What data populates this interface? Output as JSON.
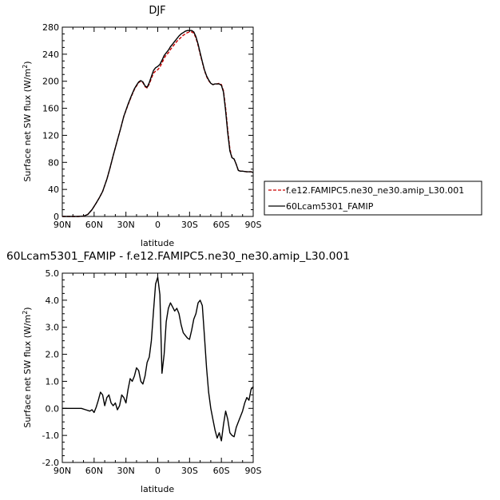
{
  "chart_data": [
    {
      "type": "line",
      "title": "DJF",
      "xlabel": "latitude",
      "ylabel": "Surface net SW flux (W/m",
      "ylabel_sup": "2",
      "ylabel_close": ")",
      "x_ticks": [
        -90,
        -60,
        -30,
        0,
        30,
        60,
        90
      ],
      "x_tick_labels": [
        "90N",
        "60N",
        "30N",
        "0",
        "30S",
        "60S",
        "90S"
      ],
      "xlim": [
        -90,
        90
      ],
      "ylim": [
        0,
        280
      ],
      "y_ticks": [
        0,
        40,
        80,
        120,
        160,
        200,
        240,
        280
      ],
      "y_tick_labels": [
        "0",
        "40",
        "80",
        "120",
        "160",
        "200",
        "240",
        "280"
      ],
      "legend_position": "right",
      "series": [
        {
          "name": "f.e12.FAMIPC5.ne30_ne30.amip_L30.001",
          "color": "#cc0000",
          "dash": "dashed",
          "x": [
            -90,
            -85,
            -80,
            -75,
            -70,
            -66,
            -62,
            -58,
            -55,
            -52,
            -48,
            -45,
            -42,
            -38,
            -35,
            -32,
            -28,
            -25,
            -22,
            -20,
            -18,
            -16,
            -14,
            -12,
            -10,
            -8,
            -6,
            -4,
            -2,
            0,
            2,
            4,
            6,
            8,
            10,
            12,
            14,
            16,
            18,
            20,
            22,
            24,
            26,
            28,
            30,
            32,
            34,
            36,
            38,
            40,
            42,
            44,
            46,
            48,
            50,
            52,
            54,
            56,
            58,
            60,
            62,
            64,
            66,
            68,
            70,
            72,
            74,
            76,
            78,
            80,
            84,
            88,
            90
          ],
          "y": [
            0,
            0,
            0,
            0,
            0.5,
            3,
            10,
            20,
            28,
            37,
            55,
            72,
            90,
            113,
            130,
            148,
            165,
            177,
            188,
            193,
            198,
            200,
            198,
            192,
            190,
            196,
            204,
            212,
            215,
            217,
            221,
            227,
            234,
            239,
            242,
            247,
            251,
            255,
            259,
            262,
            265,
            268,
            270,
            272,
            273,
            273,
            271,
            264,
            253,
            240,
            228,
            216,
            207,
            201,
            197,
            195,
            196,
            196,
            197,
            195,
            186,
            160,
            128,
            100,
            87,
            85,
            77,
            68,
            67,
            67,
            66,
            66,
            65
          ]
        },
        {
          "name": "60Lcam5301_FAMIP",
          "color": "#000000",
          "dash": "solid",
          "x": [
            -90,
            -85,
            -80,
            -75,
            -70,
            -66,
            -62,
            -58,
            -55,
            -52,
            -48,
            -45,
            -42,
            -38,
            -35,
            -32,
            -28,
            -25,
            -22,
            -20,
            -18,
            -16,
            -14,
            -12,
            -10,
            -8,
            -6,
            -4,
            -2,
            0,
            2,
            4,
            6,
            8,
            10,
            12,
            14,
            16,
            18,
            20,
            22,
            24,
            26,
            28,
            30,
            32,
            34,
            36,
            38,
            40,
            42,
            44,
            46,
            48,
            50,
            52,
            54,
            56,
            58,
            60,
            62,
            64,
            66,
            68,
            70,
            72,
            74,
            76,
            78,
            80,
            84,
            88,
            90
          ],
          "y": [
            0,
            0,
            0,
            0,
            0.5,
            3,
            10,
            20,
            28,
            37,
            55,
            72,
            90,
            113,
            130,
            148,
            166,
            178,
            189,
            194,
            199,
            201,
            199,
            193,
            191,
            198,
            207,
            216,
            220,
            222,
            225,
            231,
            238,
            242,
            246,
            251,
            255,
            259,
            263,
            267,
            270,
            272,
            274,
            275,
            275,
            275,
            273,
            266,
            255,
            242,
            229,
            217,
            208,
            202,
            197,
            195,
            196,
            196,
            196,
            194,
            184,
            156,
            124,
            97,
            87,
            85,
            77,
            68,
            67,
            67,
            66,
            66,
            65
          ]
        }
      ]
    },
    {
      "type": "line",
      "title": "60Lcam5301_FAMIP  -  f.e12.FAMIPC5.ne30_ne30.amip_L30.001",
      "xlabel": "latitude",
      "ylabel": "Surface net SW flux (W/m",
      "ylabel_sup": "2",
      "ylabel_close": ")",
      "x_ticks": [
        -90,
        -60,
        -30,
        0,
        30,
        60,
        90
      ],
      "x_tick_labels": [
        "90N",
        "60N",
        "30N",
        "0",
        "30S",
        "60S",
        "90S"
      ],
      "xlim": [
        -90,
        90
      ],
      "ylim": [
        -2,
        5
      ],
      "y_ticks": [
        -2,
        -1,
        0,
        1,
        2,
        3,
        4,
        5
      ],
      "y_tick_labels": [
        "-2.0",
        "-1.0",
        "0.0",
        "1.0",
        "2.0",
        "3.0",
        "4.0",
        "5.0"
      ],
      "series": [
        {
          "color": "#000000",
          "dash": "solid",
          "x": [
            -90,
            -80,
            -72,
            -68,
            -64,
            -62,
            -60,
            -58,
            -56,
            -54,
            -52,
            -50,
            -48,
            -46,
            -44,
            -42,
            -40,
            -38,
            -36,
            -34,
            -32,
            -30,
            -28,
            -26,
            -24,
            -22,
            -20,
            -18,
            -16,
            -14,
            -12,
            -10,
            -8,
            -6,
            -4,
            -2,
            0,
            2,
            4,
            6,
            8,
            10,
            12,
            14,
            16,
            18,
            20,
            22,
            24,
            26,
            28,
            30,
            32,
            34,
            36,
            38,
            40,
            42,
            44,
            46,
            48,
            50,
            52,
            54,
            56,
            58,
            60,
            62,
            64,
            66,
            68,
            70,
            72,
            74,
            76,
            78,
            80,
            82,
            84,
            86,
            88,
            90
          ],
          "y": [
            0,
            0,
            0,
            -0.05,
            -0.1,
            -0.05,
            -0.15,
            0.05,
            0.3,
            0.6,
            0.5,
            0.1,
            0.4,
            0.5,
            0.2,
            0.1,
            0.2,
            -0.05,
            0.1,
            0.5,
            0.4,
            0.2,
            0.7,
            1.1,
            1.0,
            1.2,
            1.5,
            1.4,
            1.0,
            0.9,
            1.2,
            1.7,
            1.9,
            2.5,
            3.6,
            4.6,
            4.85,
            4.2,
            1.3,
            2.0,
            3.2,
            3.7,
            3.9,
            3.75,
            3.6,
            3.7,
            3.5,
            3.1,
            2.8,
            2.7,
            2.6,
            2.55,
            2.9,
            3.3,
            3.5,
            3.9,
            4.0,
            3.8,
            2.7,
            1.5,
            0.6,
            0.0,
            -0.4,
            -0.8,
            -1.1,
            -0.9,
            -1.2,
            -0.6,
            -0.1,
            -0.4,
            -0.9,
            -1.0,
            -1.05,
            -0.7,
            -0.5,
            -0.3,
            -0.1,
            0.2,
            0.4,
            0.3,
            0.7,
            0.8
          ]
        }
      ]
    }
  ]
}
